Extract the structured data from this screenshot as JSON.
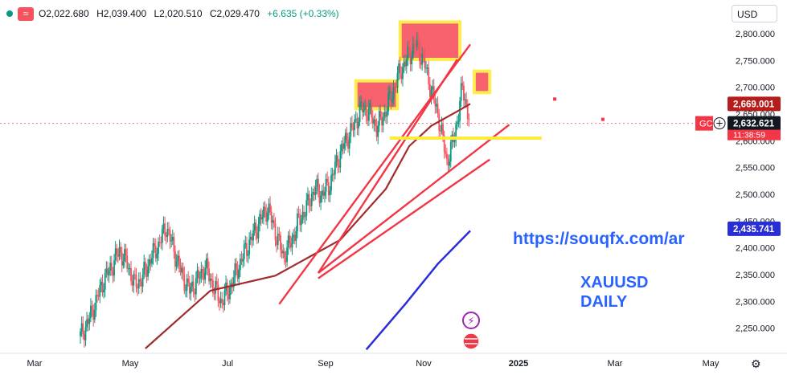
{
  "header": {
    "open": "O2,022.680",
    "high": "H2,039.400",
    "low": "L2,020.510",
    "close": "C2,029.470",
    "change": "+6.635 (+0.33%)",
    "currency_button": "USD"
  },
  "icons": {
    "status": "status-dot-icon",
    "indicator": "wave-icon",
    "event": "bolt-event-icon",
    "flag": "us-flag-event-icon",
    "settings": "gear-icon"
  },
  "colors": {
    "up": "#089981",
    "down": "#f7525f",
    "ma_dark": "#a12c2c",
    "ma_blue": "#2a2ed6",
    "trendline": "#f23645",
    "support": "#ffeb3b",
    "zone_fill": "#f7525f",
    "zone_border": "#ffeb3b",
    "link_text": "#2962ff",
    "price_label_red": "#b71c1c",
    "price_label_dark": "#131722",
    "price_label_blue": "#2a2ed6"
  },
  "annotations": {
    "url": "https://souqfx.com/ar",
    "symbol": "XAUUSD",
    "timeframe": "DAILY"
  },
  "chart_data": {
    "type": "candlestick",
    "x_axis_labels": [
      "Mar",
      "May",
      "Jul",
      "Sep",
      "Nov",
      "2025",
      "Mar",
      "May"
    ],
    "y_axis_ticks": [
      2250,
      2300,
      2350,
      2400,
      2450,
      2500,
      2550,
      2600,
      2650,
      2700,
      2750,
      2800
    ],
    "ylim": [
      2210,
      2835
    ],
    "price_labels": {
      "current_price": {
        "value": 2632.621,
        "text": "2,632.621"
      },
      "countdown": {
        "text": "11:38:59"
      },
      "ma_slow": {
        "value": 2669.001,
        "text": "2,669.001"
      },
      "ma_blue": {
        "value": 2435.741,
        "text": "2,435.741"
      },
      "symbol_tag": "GC"
    },
    "series": [
      {
        "name": "",
        "type": "candles",
        "t": [
          0,
          6,
          12,
          18,
          24,
          30,
          36,
          42,
          48,
          54,
          60,
          66,
          72,
          78,
          84,
          90,
          96,
          102,
          108,
          114,
          120,
          126,
          132,
          138,
          144,
          150,
          156,
          162,
          168,
          174,
          180,
          186,
          192,
          198,
          204,
          210,
          216,
          222,
          228,
          234,
          240,
          246,
          252,
          258,
          264,
          270,
          276,
          282,
          288,
          294,
          300
        ],
        "close": [
          2235,
          2262,
          2300,
          2340,
          2365,
          2395,
          2370,
          2330,
          2345,
          2380,
          2405,
          2440,
          2395,
          2350,
          2320,
          2340,
          2365,
          2330,
          2300,
          2320,
          2355,
          2390,
          2420,
          2450,
          2475,
          2430,
          2385,
          2410,
          2450,
          2475,
          2510,
          2500,
          2520,
          2565,
          2600,
          2625,
          2660,
          2655,
          2625,
          2650,
          2690,
          2730,
          2755,
          2780,
          2750,
          2695,
          2640,
          2560,
          2610,
          2700,
          2632
        ]
      },
      {
        "name": "",
        "type": "line",
        "t": [
          50,
          100,
          150,
          200,
          235,
          253,
          270,
          290,
          300
        ],
        "values": [
          2212,
          2320,
          2348,
          2415,
          2510,
          2590,
          2628,
          2655,
          2669
        ]
      },
      {
        "name": "",
        "type": "line",
        "t": [
          220,
          250,
          275,
          300
        ],
        "values": [
          2210,
          2295,
          2370,
          2432
        ]
      }
    ],
    "trendlines": [
      {
        "t": [
          153,
          300
        ],
        "values": [
          2295,
          2780
        ]
      },
      {
        "t": [
          183,
          290
        ],
        "values": [
          2353,
          2752
        ]
      },
      {
        "t": [
          183,
          330
        ],
        "values": [
          2353,
          2630
        ]
      },
      {
        "t": [
          183,
          315
        ],
        "values": [
          2343,
          2565
        ]
      }
    ],
    "support_line": {
      "t": [
        238,
        355
      ],
      "value": 2605
    },
    "zones": [
      {
        "t": [
          212,
          244
        ],
        "from": 2660,
        "to": 2712
      },
      {
        "t": [
          246,
          292
        ],
        "from": 2752,
        "to": 2822
      },
      {
        "t": [
          303,
          315
        ],
        "from": 2690,
        "to": 2730
      }
    ],
    "markers": [
      {
        "t": 365,
        "value": 2678
      },
      {
        "t": 402,
        "value": 2640
      }
    ],
    "dashed_reference": 2632.621
  }
}
